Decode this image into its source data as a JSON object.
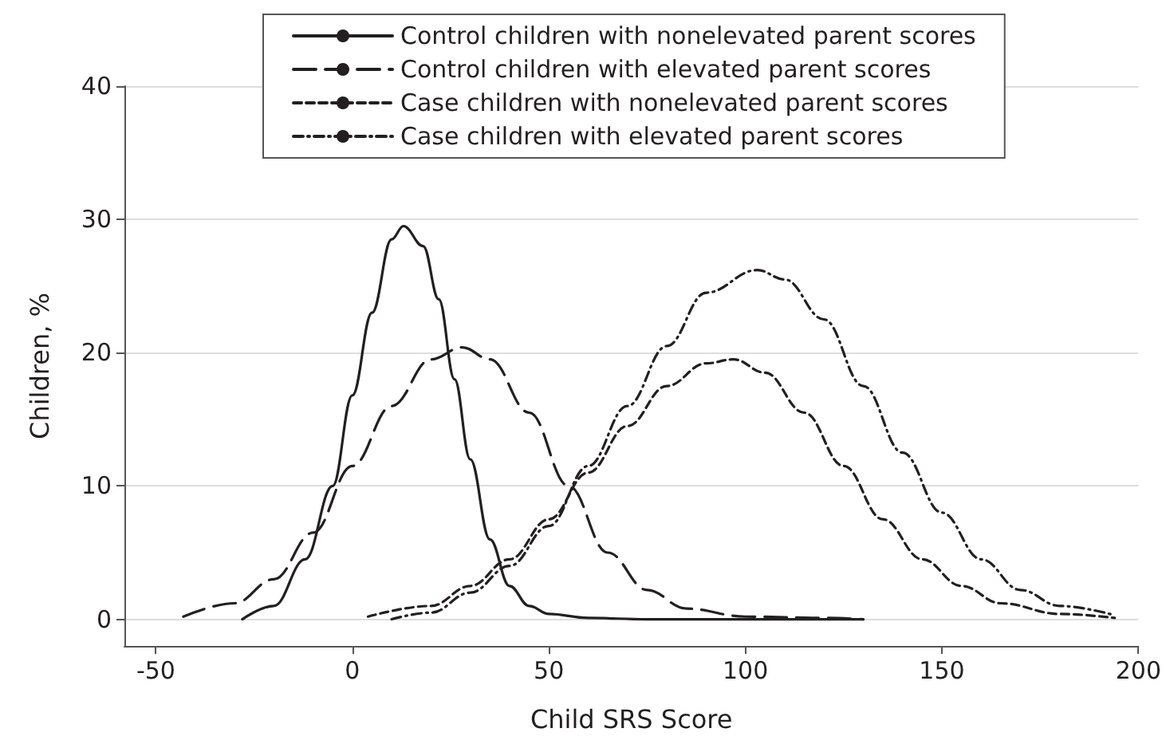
{
  "chart_data": {
    "type": "line",
    "xlabel": "Child SRS Score",
    "ylabel": "Children, %",
    "xlim": [
      -58,
      200
    ],
    "xticks": [
      -50,
      0,
      50,
      100,
      150,
      200
    ],
    "ylim": [
      -2,
      40
    ],
    "yticks": [
      0,
      10,
      20,
      30,
      40
    ],
    "grid": "y",
    "legend": "top",
    "marker": "none",
    "series": [
      {
        "name": "Control children with nonelevated parent scores",
        "color": "#231f20",
        "line_style": "solid",
        "x": [
          -28,
          -20,
          -12,
          -5,
          0,
          5,
          10,
          13,
          18,
          22,
          26,
          30,
          35,
          40,
          45,
          50,
          60,
          75,
          100,
          130
        ],
        "values": [
          0,
          1,
          4.5,
          10,
          16.8,
          23,
          28.5,
          29.5,
          28,
          24,
          18,
          12,
          6,
          2.5,
          1,
          0.4,
          0.1,
          0,
          0,
          0
        ]
      },
      {
        "name": "Control children with elevated parent scores",
        "color": "#231f20",
        "line_style": "longdash",
        "x": [
          -43,
          -30,
          -20,
          -10,
          0,
          10,
          20,
          28,
          35,
          45,
          55,
          65,
          75,
          85,
          100,
          120,
          130
        ],
        "values": [
          0.2,
          1.2,
          3,
          6.5,
          11.5,
          16,
          19.5,
          20.4,
          19.5,
          15.5,
          10,
          5,
          2.2,
          0.8,
          0.2,
          0.1,
          0
        ]
      },
      {
        "name": "Case children with nonelevated parent scores",
        "color": "#231f20",
        "line_style": "dashed",
        "x": [
          4,
          20,
          30,
          40,
          50,
          60,
          70,
          80,
          90,
          97,
          105,
          115,
          125,
          135,
          145,
          155,
          165,
          180,
          194
        ],
        "values": [
          0.2,
          1,
          2.5,
          4.5,
          7.5,
          11,
          14.5,
          17.5,
          19.2,
          19.5,
          18.5,
          15.5,
          11.5,
          7.5,
          4.5,
          2.5,
          1.2,
          0.4,
          0.1
        ]
      },
      {
        "name": "Case children with elevated parent scores",
        "color": "#231f20",
        "line_style": "dashdot",
        "x": [
          10,
          20,
          30,
          40,
          50,
          60,
          70,
          80,
          90,
          103,
          110,
          120,
          130,
          140,
          150,
          160,
          170,
          180,
          194
        ],
        "values": [
          0,
          0.5,
          2,
          4,
          7,
          11.5,
          16,
          20.5,
          24.5,
          26.2,
          25.5,
          22.5,
          17.5,
          12.5,
          8,
          4.5,
          2.2,
          1,
          0.3
        ]
      }
    ]
  }
}
